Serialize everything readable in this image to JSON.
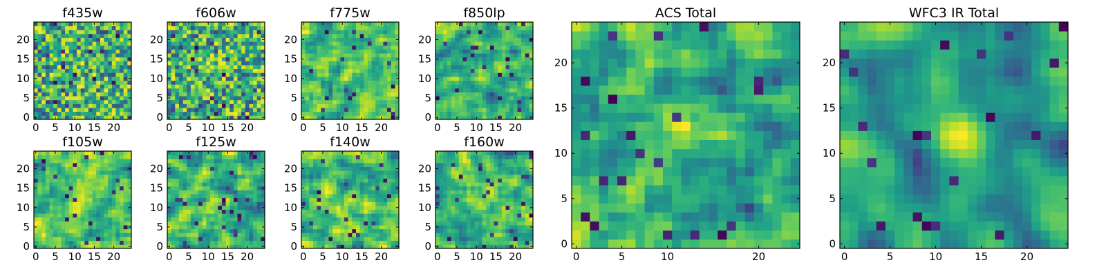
{
  "figure": {
    "background": "#ffffff",
    "colormap": "viridis"
  },
  "chart_data": [
    {
      "type": "heatmap",
      "title": "f435w",
      "grid_size": 25,
      "xlim": [
        -0.5,
        24.5
      ],
      "ylim": [
        -0.5,
        24.5
      ],
      "xticks": [
        0,
        5,
        10,
        15,
        20
      ],
      "yticks": [
        0,
        5,
        10,
        15,
        20
      ],
      "smoothness": 0.15,
      "hotspot": [
        12,
        12,
        0.2
      ]
    },
    {
      "type": "heatmap",
      "title": "f606w",
      "grid_size": 25,
      "xlim": [
        -0.5,
        24.5
      ],
      "ylim": [
        -0.5,
        24.5
      ],
      "xticks": [
        0,
        5,
        10,
        15,
        20
      ],
      "yticks": [
        0,
        5,
        10,
        15,
        20
      ],
      "smoothness": 0.15,
      "hotspot": [
        12,
        12,
        0.2
      ]
    },
    {
      "type": "heatmap",
      "title": "f775w",
      "grid_size": 25,
      "xlim": [
        -0.5,
        24.5
      ],
      "ylim": [
        -0.5,
        24.5
      ],
      "xticks": [
        0,
        5,
        10,
        15,
        20
      ],
      "yticks": [
        0,
        5,
        10,
        15,
        20
      ],
      "smoothness": 0.2,
      "hotspot": [
        11,
        12,
        0.4
      ]
    },
    {
      "type": "heatmap",
      "title": "f850lp",
      "grid_size": 25,
      "xlim": [
        -0.5,
        24.5
      ],
      "ylim": [
        -0.5,
        24.5
      ],
      "xticks": [
        0,
        5,
        10,
        15,
        20
      ],
      "yticks": [
        0,
        5,
        10,
        15,
        20
      ],
      "smoothness": 0.2,
      "hotspot": [
        11,
        12,
        0.4
      ]
    },
    {
      "type": "heatmap",
      "title": "f105w",
      "grid_size": 25,
      "xlim": [
        -0.5,
        24.5
      ],
      "ylim": [
        -0.5,
        24.5
      ],
      "xticks": [
        0,
        5,
        10,
        15,
        20
      ],
      "yticks": [
        0,
        5,
        10,
        15,
        20
      ],
      "smoothness": 0.45,
      "hotspot": [
        12,
        11,
        0.6
      ]
    },
    {
      "type": "heatmap",
      "title": "f125w",
      "grid_size": 25,
      "xlim": [
        -0.5,
        24.5
      ],
      "ylim": [
        -0.5,
        24.5
      ],
      "xticks": [
        0,
        5,
        10,
        15,
        20
      ],
      "yticks": [
        0,
        5,
        10,
        15,
        20
      ],
      "smoothness": 0.45,
      "hotspot": [
        12,
        11,
        0.5
      ]
    },
    {
      "type": "heatmap",
      "title": "f140w",
      "grid_size": 25,
      "xlim": [
        -0.5,
        24.5
      ],
      "ylim": [
        -0.5,
        24.5
      ],
      "xticks": [
        0,
        5,
        10,
        15,
        20
      ],
      "yticks": [
        0,
        5,
        10,
        15,
        20
      ],
      "smoothness": 0.45,
      "hotspot": [
        12,
        11,
        0.5
      ]
    },
    {
      "type": "heatmap",
      "title": "f160w",
      "grid_size": 25,
      "xlim": [
        -0.5,
        24.5
      ],
      "ylim": [
        -0.5,
        24.5
      ],
      "xticks": [
        0,
        5,
        10,
        15,
        20
      ],
      "yticks": [
        0,
        5,
        10,
        15,
        20
      ],
      "smoothness": 0.45,
      "hotspot": [
        12,
        11,
        0.5
      ]
    },
    {
      "type": "heatmap",
      "title": "ACS Total",
      "grid_size": 25,
      "xlim": [
        -0.5,
        24.5
      ],
      "ylim": [
        -0.5,
        24.5
      ],
      "xticks": [
        0,
        5,
        10,
        20
      ],
      "yticks": [
        0,
        5,
        10,
        15,
        20
      ],
      "smoothness": 0.25,
      "hotspot": [
        12,
        12,
        0.8
      ]
    },
    {
      "type": "heatmap",
      "title": "WFC3 IR Total",
      "grid_size": 25,
      "xlim": [
        -0.5,
        24.5
      ],
      "ylim": [
        -0.5,
        24.5
      ],
      "xticks": [
        0,
        5,
        10,
        15,
        20
      ],
      "yticks": [
        0,
        5,
        10,
        15,
        20
      ],
      "smoothness": 0.55,
      "hotspot": [
        12,
        12,
        1.0
      ]
    }
  ]
}
